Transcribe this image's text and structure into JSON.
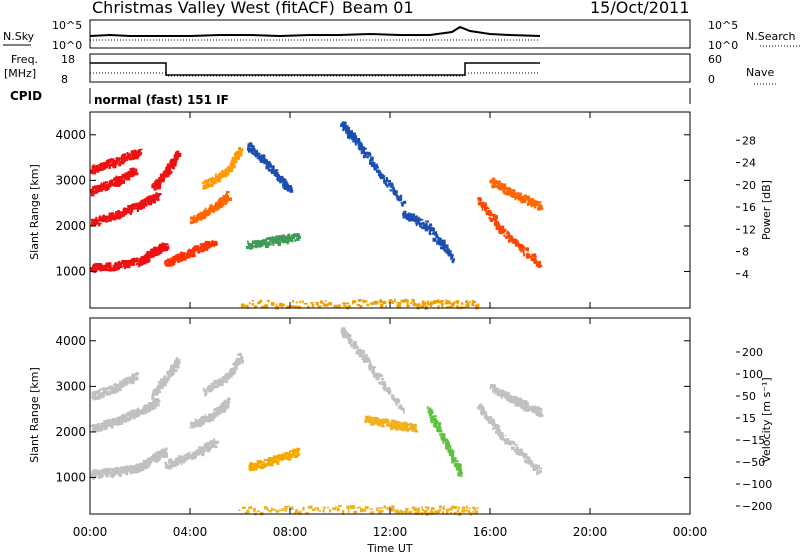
{
  "header": {
    "title": "Christmas Valley West (fitACF)",
    "beam": "Beam 01",
    "date": "15/Oct/2011"
  },
  "panels": {
    "nsky": {
      "left_label": "N.Sky",
      "right_label": "N.Search",
      "left_ticks": [
        "10^5",
        "10^0"
      ],
      "right_ticks": [
        "10^5",
        "10^0"
      ]
    },
    "freq": {
      "left_label_1": "Freq.",
      "left_label_2": "[MHz]",
      "right_label": "Nave",
      "left_ticks": [
        "18",
        "8"
      ],
      "right_ticks": [
        "60",
        "0"
      ]
    },
    "cpid": {
      "label": "CPID",
      "text": "normal (fast) 151 IF"
    }
  },
  "chart_data": [
    {
      "type": "heatmap",
      "name": "power",
      "ylabel": "Slant Range [km]",
      "xlabel": "",
      "xlim": [
        0,
        24
      ],
      "ylim": [
        200,
        4500
      ],
      "x_ticks": [],
      "y_ticks": [
        "1000",
        "2000",
        "3000",
        "4000"
      ],
      "colorbar": {
        "label": "Power [dB]",
        "ticks": [
          "28",
          "24",
          "20",
          "16",
          "12",
          "8",
          "4"
        ],
        "colors": [
          "#ff0000",
          "#ff6a00",
          "#ff9900",
          "#ffcc00",
          "#90c830",
          "#2e9960",
          "#1a4fb0",
          "#0000ee"
        ]
      },
      "tracks": [
        {
          "color": "#ee1111",
          "points": [
            [
              0.0,
              1100
            ],
            [
              1.0,
              1150
            ],
            [
              2.0,
              1250
            ],
            [
              2.5,
              1450
            ],
            [
              3.0,
              1600
            ]
          ]
        },
        {
          "color": "#ee1111",
          "points": [
            [
              0.0,
              2100
            ],
            [
              1.0,
              2250
            ],
            [
              2.0,
              2500
            ],
            [
              2.7,
              2700
            ]
          ]
        },
        {
          "color": "#ee1111",
          "points": [
            [
              0.0,
              2800
            ],
            [
              1.0,
              3000
            ],
            [
              1.8,
              3250
            ]
          ]
        },
        {
          "color": "#ee1111",
          "points": [
            [
              0.0,
              3250
            ],
            [
              1.0,
              3450
            ],
            [
              2.0,
              3650
            ]
          ]
        },
        {
          "color": "#ee1111",
          "points": [
            [
              2.5,
              2850
            ],
            [
              3.0,
              3200
            ],
            [
              3.5,
              3600
            ]
          ]
        },
        {
          "color": "#ff3300",
          "points": [
            [
              3.0,
              1200
            ],
            [
              4.0,
              1450
            ],
            [
              5.0,
              1700
            ]
          ]
        },
        {
          "color": "#ff6600",
          "points": [
            [
              4.0,
              2150
            ],
            [
              5.0,
              2450
            ],
            [
              5.5,
              2700
            ]
          ]
        },
        {
          "color": "#ff9900",
          "points": [
            [
              4.5,
              2900
            ],
            [
              5.5,
              3250
            ],
            [
              6.0,
              3700
            ]
          ]
        },
        {
          "color": "#3f9a55",
          "points": [
            [
              6.3,
              1600
            ],
            [
              7.3,
              1700
            ],
            [
              8.3,
              1800
            ]
          ]
        },
        {
          "color": "#1a4fb0",
          "points": [
            [
              6.3,
              3800
            ],
            [
              7.2,
              3300
            ],
            [
              8.0,
              2800
            ]
          ]
        },
        {
          "color": "#1a4fb0",
          "points": [
            [
              10.0,
              4300
            ],
            [
              11.0,
              3600
            ],
            [
              12.5,
              2500
            ]
          ]
        },
        {
          "color": "#1a4fb0",
          "points": [
            [
              12.5,
              2300
            ],
            [
              13.5,
              2000
            ],
            [
              14.5,
              1300
            ]
          ]
        },
        {
          "color": "#ff4400",
          "points": [
            [
              15.5,
              2600
            ],
            [
              16.5,
              1900
            ],
            [
              18.0,
              1150
            ]
          ]
        },
        {
          "color": "#ff6600",
          "points": [
            [
              16.0,
              3000
            ],
            [
              17.0,
              2700
            ],
            [
              18.0,
              2450
            ]
          ]
        },
        {
          "color": "#f0a000",
          "points": [
            [
              6.0,
              300
            ],
            [
              12.0,
              330
            ],
            [
              15.5,
              300
            ]
          ]
        }
      ]
    },
    {
      "type": "heatmap",
      "name": "velocity",
      "ylabel": "Slant Range [km]",
      "xlabel": "Time UT",
      "xlim": [
        0,
        24
      ],
      "ylim": [
        200,
        4500
      ],
      "x_ticks": [
        "00:00",
        "04:00",
        "08:00",
        "12:00",
        "16:00",
        "20:00",
        "00:00"
      ],
      "y_ticks": [
        "1000",
        "2000",
        "3000",
        "4000"
      ],
      "colorbar": {
        "label": "Velocity [m s⁻¹]",
        "ticks": [
          "200",
          "100",
          "50",
          "15",
          "−15",
          "−50",
          "−100",
          "−200"
        ],
        "colors": [
          "#1a4fb0",
          "#2e9960",
          "#6cc84a",
          "#c8c8c8",
          "#ffcc00",
          "#ff9900",
          "#ff6a00",
          "#ff0000"
        ]
      },
      "tracks": [
        {
          "color": "#c0c0c0",
          "points": [
            [
              0.0,
              1100
            ],
            [
              1.0,
              1150
            ],
            [
              2.0,
              1250
            ],
            [
              2.5,
              1450
            ],
            [
              3.0,
              1600
            ]
          ]
        },
        {
          "color": "#c0c0c0",
          "points": [
            [
              0.0,
              2100
            ],
            [
              1.0,
              2250
            ],
            [
              2.0,
              2500
            ],
            [
              2.7,
              2700
            ]
          ]
        },
        {
          "color": "#c0c0c0",
          "points": [
            [
              0.0,
              2800
            ],
            [
              1.0,
              3000
            ],
            [
              1.8,
              3250
            ]
          ]
        },
        {
          "color": "#c0c0c0",
          "points": [
            [
              2.5,
              2850
            ],
            [
              3.0,
              3200
            ],
            [
              3.5,
              3600
            ]
          ]
        },
        {
          "color": "#c0c0c0",
          "points": [
            [
              3.0,
              1300
            ],
            [
              4.0,
              1500
            ],
            [
              5.0,
              1800
            ]
          ]
        },
        {
          "color": "#c0c0c0",
          "points": [
            [
              4.0,
              2150
            ],
            [
              5.0,
              2450
            ],
            [
              5.5,
              2700
            ]
          ]
        },
        {
          "color": "#c0c0c0",
          "points": [
            [
              4.5,
              2900
            ],
            [
              5.5,
              3250
            ],
            [
              6.0,
              3700
            ]
          ]
        },
        {
          "color": "#f5a800",
          "points": [
            [
              6.3,
              1250
            ],
            [
              7.3,
              1400
            ],
            [
              8.3,
              1600
            ]
          ]
        },
        {
          "color": "#c0c0c0",
          "points": [
            [
              10.0,
              4300
            ],
            [
              11.0,
              3600
            ],
            [
              12.5,
              2500
            ]
          ]
        },
        {
          "color": "#f0b020",
          "points": [
            [
              11.0,
              2300
            ],
            [
              12.0,
              2200
            ],
            [
              13.0,
              2100
            ]
          ]
        },
        {
          "color": "#60c040",
          "points": [
            [
              13.5,
              2500
            ],
            [
              14.2,
              1800
            ],
            [
              14.8,
              1100
            ]
          ]
        },
        {
          "color": "#c0c0c0",
          "points": [
            [
              15.5,
              2600
            ],
            [
              16.5,
              1900
            ],
            [
              18.0,
              1150
            ]
          ]
        },
        {
          "color": "#c0c0c0",
          "points": [
            [
              16.0,
              3000
            ],
            [
              17.0,
              2700
            ],
            [
              18.0,
              2450
            ]
          ]
        },
        {
          "color": "#f0b020",
          "points": [
            [
              6.0,
              300
            ],
            [
              12.0,
              330
            ],
            [
              15.5,
              300
            ]
          ]
        }
      ]
    }
  ]
}
